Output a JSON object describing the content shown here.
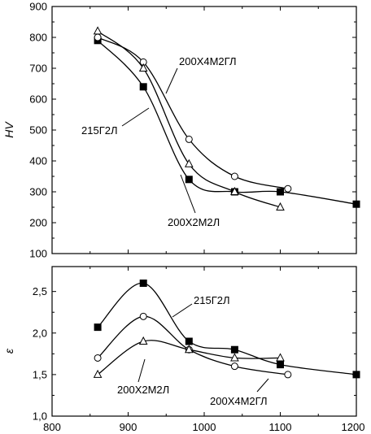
{
  "chart_data": [
    {
      "type": "line",
      "title": "",
      "xlabel": "",
      "ylabel": "HV",
      "xlim": [
        800,
        1200
      ],
      "ylim": [
        100,
        900
      ],
      "xticks": [
        "800",
        "900",
        "1000",
        "1100",
        "1200"
      ],
      "yticks": [
        "100",
        "200",
        "300",
        "400",
        "500",
        "600",
        "700",
        "800",
        "900"
      ],
      "series": [
        {
          "name": "215Г2Л",
          "marker": "square-filled",
          "x": [
            860,
            920,
            980,
            1040,
            1100,
            1200
          ],
          "y": [
            790,
            640,
            340,
            300,
            300,
            260
          ]
        },
        {
          "name": "200Х4М2ГЛ",
          "marker": "circle-open",
          "x": [
            860,
            920,
            980,
            1040,
            1110
          ],
          "y": [
            800,
            720,
            470,
            350,
            310
          ]
        },
        {
          "name": "200Х2М2Л",
          "marker": "triangle-open",
          "x": [
            860,
            920,
            980,
            1040,
            1100
          ],
          "y": [
            820,
            700,
            390,
            300,
            250
          ]
        }
      ],
      "annotations": [
        {
          "text": "200Х4М2ГЛ",
          "series": "200Х4М2ГЛ"
        },
        {
          "text": "215Г2Л",
          "series": "215Г2Л"
        },
        {
          "text": "200Х2М2Л",
          "series": "200Х2М2Л"
        }
      ]
    },
    {
      "type": "line",
      "title": "",
      "xlabel": "",
      "ylabel": "ε",
      "xlim": [
        800,
        1200
      ],
      "ylim": [
        1.0,
        2.8
      ],
      "xticks": [
        "800",
        "900",
        "1000",
        "1100",
        "1200"
      ],
      "yticks": [
        "1,0",
        "1,5",
        "2,0",
        "2,5"
      ],
      "series": [
        {
          "name": "215Г2Л",
          "marker": "square-filled",
          "x": [
            860,
            920,
            980,
            1040,
            1100,
            1200
          ],
          "y": [
            2.07,
            2.6,
            1.9,
            1.8,
            1.62,
            1.5
          ]
        },
        {
          "name": "200Х4М2ГЛ",
          "marker": "circle-open",
          "x": [
            860,
            920,
            980,
            1040,
            1110
          ],
          "y": [
            1.7,
            2.2,
            1.8,
            1.6,
            1.5
          ]
        },
        {
          "name": "200Х2М2Л",
          "marker": "triangle-open",
          "x": [
            860,
            920,
            980,
            1040,
            1100
          ],
          "y": [
            1.5,
            1.9,
            1.8,
            1.7,
            1.7
          ]
        }
      ],
      "annotations": [
        {
          "text": "215Г2Л",
          "series": "215Г2Л"
        },
        {
          "text": "200Х2М2Л",
          "series": "200Х2М2Л"
        },
        {
          "text": "200Х4М2ГЛ",
          "series": "200Х4М2ГЛ"
        }
      ]
    }
  ]
}
